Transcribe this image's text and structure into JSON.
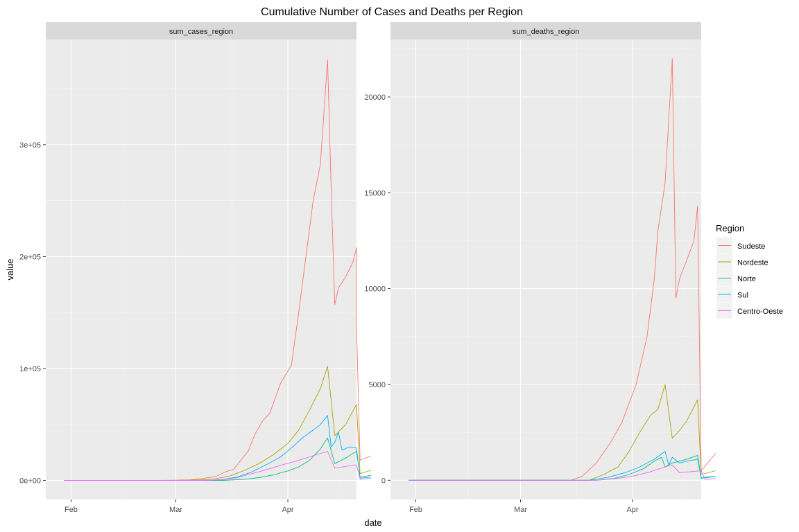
{
  "chart_data": {
    "type": "line",
    "title": "Cumulative Number of Cases and Deaths per Region",
    "xlabel": "date",
    "ylabel": "value",
    "grid": true,
    "legend": {
      "title": "Region",
      "placement": "right",
      "entries": [
        "Sudeste",
        "Nordeste",
        "Norte",
        "Sul",
        "Centro-Oeste"
      ]
    },
    "colors": {
      "Sudeste": "#F8766D",
      "Nordeste": "#A3A500",
      "Norte": "#00BF7D",
      "Sul": "#00B0F6",
      "Centro-Oeste": "#E76BF3"
    },
    "xlim": [
      "2020-01-25",
      "2020-04-20"
    ],
    "x_ticks": [
      {
        "date": "2020-02-01",
        "label": "Feb"
      },
      {
        "date": "2020-03-01",
        "label": "Mar"
      },
      {
        "date": "2020-04-01",
        "label": "Apr"
      }
    ],
    "panels": [
      {
        "strip": "sum_cases_region",
        "ylim": [
          -17000,
          394000
        ],
        "y_ticks": [
          {
            "value": 0,
            "label": "0e+00"
          },
          {
            "value": 100000,
            "label": "1e+05"
          },
          {
            "value": 200000,
            "label": "2e+05"
          },
          {
            "value": 300000,
            "label": "3e+05"
          }
        ],
        "series": [
          {
            "name": "Sudeste",
            "points": [
              [
                "2020-01-30",
                0
              ],
              [
                "2020-02-26",
                0
              ],
              [
                "2020-03-01",
                200
              ],
              [
                "2020-03-05",
                500
              ],
              [
                "2020-03-08",
                1500
              ],
              [
                "2020-03-12",
                3500
              ],
              [
                "2020-03-15",
                8000
              ],
              [
                "2020-03-17",
                10000
              ],
              [
                "2020-03-19",
                18000
              ],
              [
                "2020-03-21",
                26000
              ],
              [
                "2020-03-23",
                42000
              ],
              [
                "2020-03-25",
                53000
              ],
              [
                "2020-03-27",
                60000
              ],
              [
                "2020-03-30",
                87000
              ],
              [
                "2020-04-02",
                103000
              ],
              [
                "2020-04-04",
                150000
              ],
              [
                "2020-04-06",
                200000
              ],
              [
                "2020-04-08",
                250000
              ],
              [
                "2020-04-10",
                282000
              ],
              [
                "2020-04-12",
                376000
              ],
              [
                "2020-04-13",
                260000
              ],
              [
                "2020-04-14",
                157000
              ],
              [
                "2020-04-15",
                172000
              ],
              [
                "2020-04-17",
                182000
              ],
              [
                "2020-04-19",
                195000
              ],
              [
                "2020-04-20",
                208000
              ],
              [
                "2020-04-20",
                138000
              ],
              [
                "2020-04-21",
                18000
              ],
              [
                "2020-04-24",
                22000
              ]
            ]
          },
          {
            "name": "Nordeste",
            "points": [
              [
                "2020-01-30",
                0
              ],
              [
                "2020-03-01",
                0
              ],
              [
                "2020-03-08",
                500
              ],
              [
                "2020-03-12",
                1500
              ],
              [
                "2020-03-16",
                4000
              ],
              [
                "2020-03-20",
                9000
              ],
              [
                "2020-03-24",
                15000
              ],
              [
                "2020-03-28",
                23000
              ],
              [
                "2020-04-01",
                33000
              ],
              [
                "2020-04-04",
                45000
              ],
              [
                "2020-04-07",
                63000
              ],
              [
                "2020-04-10",
                82000
              ],
              [
                "2020-04-12",
                102000
              ],
              [
                "2020-04-14",
                40000
              ],
              [
                "2020-04-17",
                50000
              ],
              [
                "2020-04-20",
                68000
              ],
              [
                "2020-04-21",
                6000
              ],
              [
                "2020-04-24",
                9000
              ]
            ]
          },
          {
            "name": "Norte",
            "points": [
              [
                "2020-01-30",
                0
              ],
              [
                "2020-03-14",
                0
              ],
              [
                "2020-03-20",
                1000
              ],
              [
                "2020-03-24",
                2500
              ],
              [
                "2020-03-28",
                5000
              ],
              [
                "2020-04-01",
                8500
              ],
              [
                "2020-04-04",
                12000
              ],
              [
                "2020-04-07",
                18000
              ],
              [
                "2020-04-10",
                28000
              ],
              [
                "2020-04-12",
                38000
              ],
              [
                "2020-04-14",
                15000
              ],
              [
                "2020-04-17",
                20000
              ],
              [
                "2020-04-20",
                26000
              ],
              [
                "2020-04-21",
                3000
              ],
              [
                "2020-04-24",
                4500
              ]
            ]
          },
          {
            "name": "Sul",
            "points": [
              [
                "2020-01-30",
                0
              ],
              [
                "2020-03-10",
                0
              ],
              [
                "2020-03-14",
                800
              ],
              [
                "2020-03-18",
                3000
              ],
              [
                "2020-03-22",
                7500
              ],
              [
                "2020-03-26",
                14000
              ],
              [
                "2020-03-30",
                21000
              ],
              [
                "2020-04-02",
                29000
              ],
              [
                "2020-04-05",
                38000
              ],
              [
                "2020-04-08",
                45000
              ],
              [
                "2020-04-10",
                50000
              ],
              [
                "2020-04-12",
                58000
              ],
              [
                "2020-04-13",
                30000
              ],
              [
                "2020-04-14",
                34000
              ],
              [
                "2020-04-15",
                43000
              ],
              [
                "2020-04-16",
                27000
              ],
              [
                "2020-04-18",
                30000
              ],
              [
                "2020-04-20",
                29000
              ],
              [
                "2020-04-21",
                2000
              ],
              [
                "2020-04-24",
                3000
              ]
            ]
          },
          {
            "name": "Centro-Oeste",
            "points": [
              [
                "2020-01-30",
                0
              ],
              [
                "2020-03-08",
                0
              ],
              [
                "2020-03-14",
                600
              ],
              [
                "2020-03-18",
                2500
              ],
              [
                "2020-03-22",
                6000
              ],
              [
                "2020-03-26",
                9500
              ],
              [
                "2020-03-30",
                13500
              ],
              [
                "2020-04-03",
                17000
              ],
              [
                "2020-04-07",
                21000
              ],
              [
                "2020-04-12",
                26000
              ],
              [
                "2020-04-14",
                11000
              ],
              [
                "2020-04-17",
                12500
              ],
              [
                "2020-04-20",
                14000
              ],
              [
                "2020-04-21",
                1000
              ],
              [
                "2020-04-24",
                2000
              ]
            ]
          }
        ]
      },
      {
        "strip": "sum_deaths_region",
        "ylim": [
          -1000,
          23000
        ],
        "y_ticks": [
          {
            "value": 0,
            "label": "0"
          },
          {
            "value": 5000,
            "label": "5000"
          },
          {
            "value": 10000,
            "label": "10000"
          },
          {
            "value": 15000,
            "label": "15000"
          },
          {
            "value": 20000,
            "label": "20000"
          }
        ],
        "series": [
          {
            "name": "Sudeste",
            "points": [
              [
                "2020-01-30",
                0
              ],
              [
                "2020-03-15",
                0
              ],
              [
                "2020-03-18",
                200
              ],
              [
                "2020-03-22",
                900
              ],
              [
                "2020-03-26",
                2000
              ],
              [
                "2020-03-29",
                3000
              ],
              [
                "2020-04-02",
                5000
              ],
              [
                "2020-04-05",
                7500
              ],
              [
                "2020-04-07",
                10500
              ],
              [
                "2020-04-08",
                13000
              ],
              [
                "2020-04-10",
                15500
              ],
              [
                "2020-04-12",
                22000
              ],
              [
                "2020-04-13",
                9500
              ],
              [
                "2020-04-14",
                10500
              ],
              [
                "2020-04-16",
                11500
              ],
              [
                "2020-04-18",
                12500
              ],
              [
                "2020-04-19",
                14300
              ],
              [
                "2020-04-20",
                500
              ],
              [
                "2020-04-24",
                1400
              ]
            ]
          },
          {
            "name": "Nordeste",
            "points": [
              [
                "2020-01-30",
                0
              ],
              [
                "2020-03-20",
                0
              ],
              [
                "2020-03-24",
                300
              ],
              [
                "2020-03-28",
                700
              ],
              [
                "2020-03-31",
                1500
              ],
              [
                "2020-04-03",
                2500
              ],
              [
                "2020-04-06",
                3400
              ],
              [
                "2020-04-08",
                3700
              ],
              [
                "2020-04-10",
                5000
              ],
              [
                "2020-04-11",
                3600
              ],
              [
                "2020-04-12",
                2200
              ],
              [
                "2020-04-14",
                2600
              ],
              [
                "2020-04-16",
                3100
              ],
              [
                "2020-04-19",
                4200
              ],
              [
                "2020-04-20",
                300
              ],
              [
                "2020-04-24",
                500
              ]
            ]
          },
          {
            "name": "Norte",
            "points": [
              [
                "2020-01-30",
                0
              ],
              [
                "2020-03-22",
                0
              ],
              [
                "2020-03-27",
                100
              ],
              [
                "2020-03-31",
                300
              ],
              [
                "2020-04-04",
                600
              ],
              [
                "2020-04-07",
                1000
              ],
              [
                "2020-04-09",
                1200
              ],
              [
                "2020-04-10",
                700
              ],
              [
                "2020-04-12",
                900
              ],
              [
                "2020-04-14",
                1000
              ],
              [
                "2020-04-16",
                1100
              ],
              [
                "2020-04-19",
                1300
              ],
              [
                "2020-04-20",
                100
              ],
              [
                "2020-04-24",
                200
              ]
            ]
          },
          {
            "name": "Sul",
            "points": [
              [
                "2020-01-30",
                0
              ],
              [
                "2020-03-20",
                0
              ],
              [
                "2020-03-25",
                150
              ],
              [
                "2020-03-30",
                400
              ],
              [
                "2020-04-03",
                700
              ],
              [
                "2020-04-07",
                1100
              ],
              [
                "2020-04-10",
                1500
              ],
              [
                "2020-04-11",
                800
              ],
              [
                "2020-04-12",
                1200
              ],
              [
                "2020-04-14",
                900
              ],
              [
                "2020-04-16",
                1000
              ],
              [
                "2020-04-19",
                1100
              ],
              [
                "2020-04-20",
                150
              ],
              [
                "2020-04-24",
                200
              ]
            ]
          },
          {
            "name": "Centro-Oeste",
            "points": [
              [
                "2020-01-30",
                0
              ],
              [
                "2020-03-22",
                0
              ],
              [
                "2020-03-28",
                100
              ],
              [
                "2020-04-02",
                250
              ],
              [
                "2020-04-06",
                450
              ],
              [
                "2020-04-10",
                700
              ],
              [
                "2020-04-12",
                800
              ],
              [
                "2020-04-14",
                400
              ],
              [
                "2020-04-17",
                450
              ],
              [
                "2020-04-20",
                500
              ],
              [
                "2020-04-21",
                50
              ],
              [
                "2020-04-24",
                80
              ]
            ]
          }
        ]
      }
    ]
  }
}
